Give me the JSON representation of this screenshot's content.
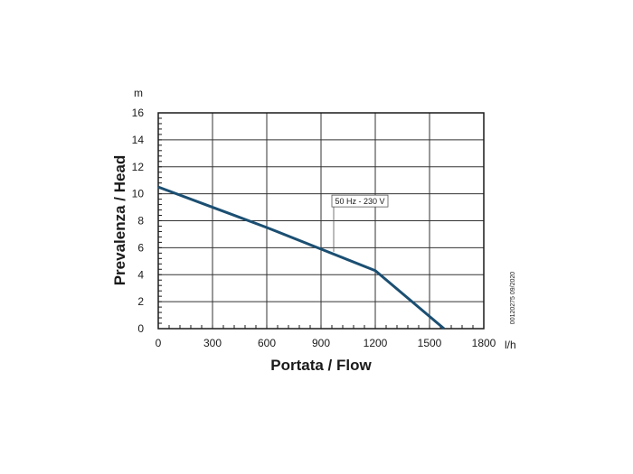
{
  "chart_data": {
    "type": "line",
    "title": "",
    "xlabel": "Portata / Flow",
    "ylabel": "Prevalenza / Head",
    "x_unit": "l/h",
    "y_unit": "m",
    "xlim": [
      0,
      1800
    ],
    "ylim": [
      0,
      16
    ],
    "x_ticks": [
      0,
      300,
      600,
      900,
      1200,
      1500,
      1800
    ],
    "y_ticks": [
      0,
      2,
      4,
      6,
      8,
      10,
      12,
      14,
      16
    ],
    "x_tick_labels": [
      "0",
      "300",
      "600",
      "900",
      "1200",
      "1500",
      "1800"
    ],
    "y_tick_labels": [
      "0",
      "2",
      "4",
      "6",
      "8",
      "10",
      "12",
      "14",
      "16"
    ],
    "grid": true,
    "series": [
      {
        "name": "50 Hz - 230 V",
        "color": "#1b4f72",
        "x": [
          0,
          300,
          600,
          900,
          1200,
          1580
        ],
        "y": [
          10.5,
          9.0,
          7.5,
          5.9,
          4.3,
          0
        ]
      }
    ],
    "annotation": {
      "text": "50 Hz - 230 V",
      "x": 970,
      "y": 5.7
    },
    "side_code": "00120275 09/2020"
  }
}
